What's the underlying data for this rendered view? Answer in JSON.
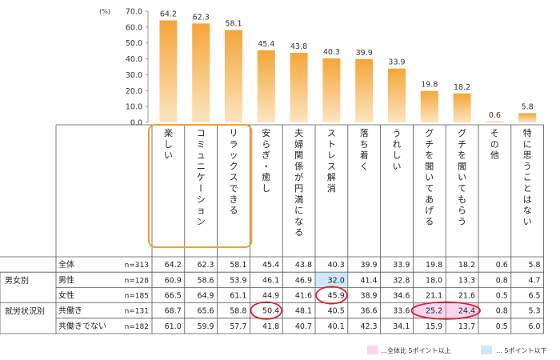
{
  "chart_data": {
    "type": "bar",
    "unit_label": "(%)",
    "yticks": [
      "70.0",
      "60.0",
      "50.0",
      "40.0",
      "30.0",
      "20.0",
      "10.0",
      "0.0"
    ],
    "ylim": [
      0,
      70
    ],
    "categories": [
      "楽しい",
      "コミュニケーション",
      "リラックスできる",
      "安らぎ・癒し",
      "夫婦関係が円満になる",
      "ストレス解消",
      "落ち着く",
      "うれしい",
      "グチを聞いてあげる",
      "グチを聞いてもらう",
      "その他",
      "特に思うことはない"
    ],
    "values": [
      64.2,
      62.3,
      58.1,
      45.4,
      43.8,
      40.3,
      39.9,
      33.9,
      19.8,
      18.2,
      0.6,
      5.8
    ],
    "value_labels": [
      "64.2",
      "62.3",
      "58.1",
      "45.4",
      "43.8",
      "40.3",
      "39.9",
      "33.9",
      "19.8",
      "18.2",
      "0.6",
      "5.8"
    ],
    "bar_color_top": "#f5a53a",
    "bar_color_bottom": "#fde4bf",
    "highlight_box_color": "#f0a030",
    "highlight_box_categories": [
      0,
      1,
      2
    ]
  },
  "table": {
    "groups": [
      {
        "label": "男女別",
        "rows": [
          1,
          2
        ]
      },
      {
        "label": "就労状況別",
        "rows": [
          3,
          4
        ]
      }
    ],
    "rows": [
      {
        "label": "全体",
        "n": "n=313",
        "values": [
          "64.2",
          "62.3",
          "58.1",
          "45.4",
          "43.8",
          "40.3",
          "39.9",
          "33.9",
          "19.8",
          "18.2",
          "0.6",
          "5.8"
        ]
      },
      {
        "label": "男性",
        "n": "n=128",
        "values": [
          "60.9",
          "58.6",
          "53.9",
          "46.1",
          "46.9",
          "32.0",
          "41.4",
          "32.8",
          "18.0",
          "13.3",
          "0.8",
          "4.7"
        ]
      },
      {
        "label": "女性",
        "n": "n=185",
        "values": [
          "66.5",
          "64.9",
          "61.1",
          "44.9",
          "41.6",
          "45.9",
          "38.9",
          "34.6",
          "21.1",
          "21.6",
          "0.5",
          "6.5"
        ]
      },
      {
        "label": "共働き",
        "n": "n=131",
        "values": [
          "68.7",
          "65.6",
          "58.8",
          "50.4",
          "48.1",
          "40.5",
          "36.6",
          "33.6",
          "25.2",
          "24.4",
          "0.8",
          "5.3"
        ]
      },
      {
        "label": "共働きでない",
        "n": "n=182",
        "values": [
          "61.0",
          "59.9",
          "57.7",
          "41.8",
          "40.7",
          "40.1",
          "42.3",
          "34.1",
          "15.9",
          "13.7",
          "0.5",
          "6.0"
        ]
      }
    ],
    "highlights": [
      {
        "row": 1,
        "col": 5,
        "type": "low"
      },
      {
        "row": 3,
        "col": 8,
        "type": "high"
      },
      {
        "row": 3,
        "col": 9,
        "type": "high"
      }
    ],
    "circles": [
      {
        "row": 2,
        "col": 5
      },
      {
        "row": 3,
        "col": 3
      },
      {
        "row": 3,
        "cols": [
          8,
          9
        ]
      }
    ],
    "high_color": "#f8d6f0",
    "low_color": "#cde8f8",
    "circle_color": "#e0202a"
  },
  "legend": {
    "high_label": "…全体比 5ポイント以上",
    "low_label": "… 5ポイント以下"
  }
}
